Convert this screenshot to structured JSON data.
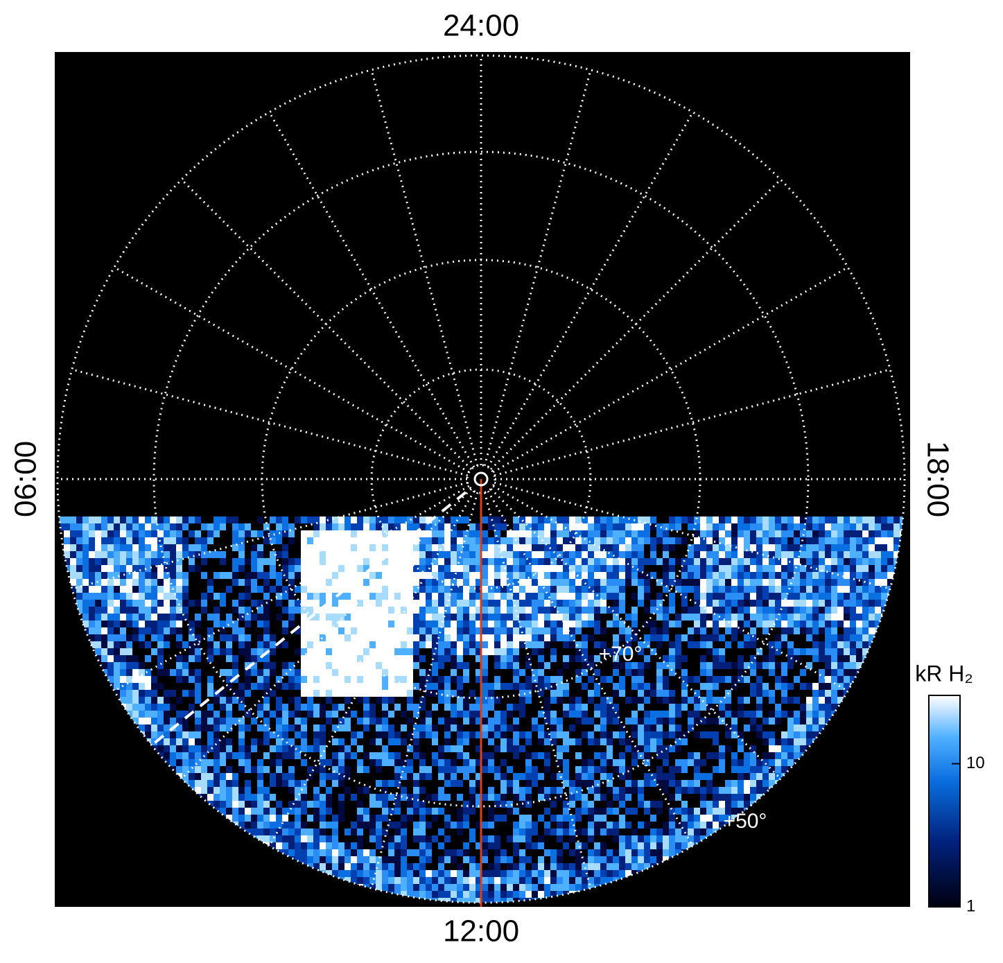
{
  "chart_data": {
    "type": "polar-image",
    "time_labels": {
      "top": "24:00",
      "bottom": "12:00",
      "left": "06:00",
      "right": "18:00"
    },
    "latitude_labels": [
      "+70°",
      "+50°"
    ],
    "colorbar": {
      "label": "kR H₂",
      "scale": "log",
      "lim": [
        1,
        30
      ],
      "ticks": [
        1,
        10
      ]
    }
  }
}
